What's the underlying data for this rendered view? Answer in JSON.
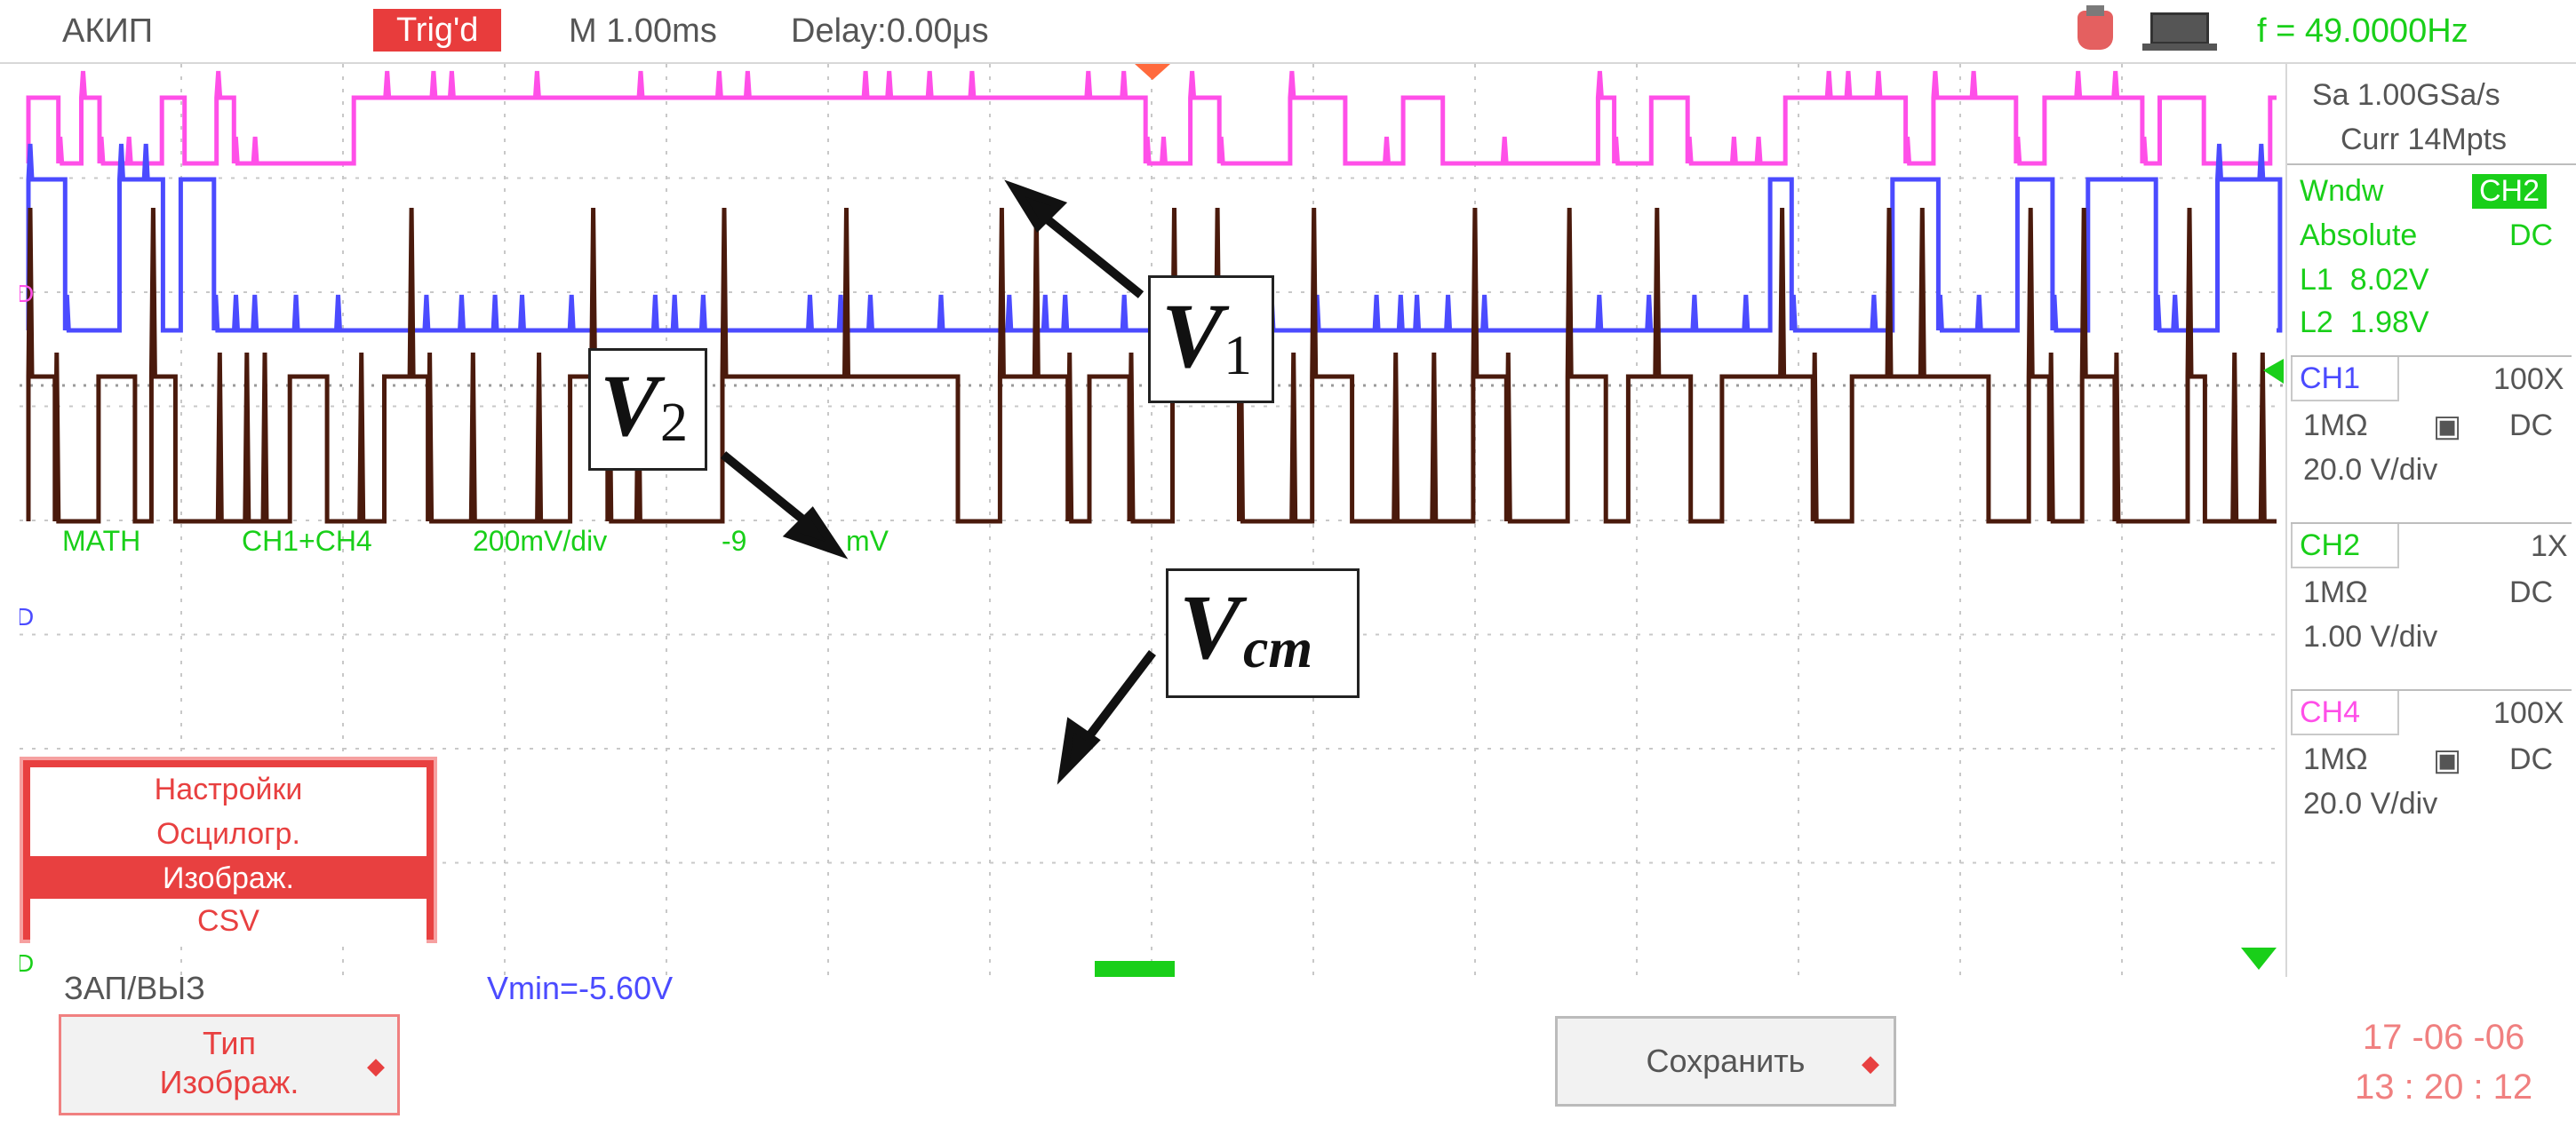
{
  "topbar": {
    "brand": "АКИП",
    "trigger_status": "Trig'd",
    "timebase": "M 1.00ms",
    "delay": "Delay:0.00μs",
    "frequency": "f = 49.0000Hz",
    "icons": [
      "usb-icon",
      "pc-icon"
    ]
  },
  "acquisition": {
    "sample_rate": "Sa 1.00GSa/s",
    "memory": "Curr 14Mpts"
  },
  "window_panel": {
    "mode": "Wndw",
    "channel_tag": "CH2",
    "reference": "Absolute",
    "coupling": "DC",
    "l1": "L1  8.02V",
    "l2": "L2  1.98V"
  },
  "channels": [
    {
      "name": "CH1",
      "probe": "100X",
      "impedance": "1MΩ",
      "coupling": "DC",
      "scale": "20.0 V/div",
      "color": "#4b4bff"
    },
    {
      "name": "CH2",
      "probe": "1X",
      "impedance": "1MΩ",
      "coupling": "DC",
      "scale": "1.00 V/div",
      "color": "#19cf19"
    },
    {
      "name": "CH4",
      "probe": "100X",
      "impedance": "1MΩ",
      "coupling": "DC",
      "scale": "20.0 V/div",
      "color": "#ff4fe8"
    }
  ],
  "math_label": {
    "name": "MATH",
    "expr": "CH1+CH4",
    "scale": "200mV/div",
    "offset": "-9",
    "unit": "mV"
  },
  "menu": {
    "items": [
      "Настройки",
      "Осцилогр.",
      "Изображ.",
      "CSV"
    ],
    "selected_index": 2
  },
  "footer": {
    "section": "ЗАП/ВЫЗ",
    "vmin": "Vmin=-5.60V",
    "type_button_line1": "Тип",
    "type_button_line2": "Изображ.",
    "save_button": "Сохранить",
    "date": "17 -06 -06",
    "time": "13 : 20 : 12"
  },
  "annotations": [
    {
      "label": "V",
      "sub": "1"
    },
    {
      "label": "V",
      "sub": "2"
    },
    {
      "label": "V",
      "sub": "cm"
    }
  ],
  "colors": {
    "v1_trace": "#ff4fe8",
    "v2_trace": "#4b4bff",
    "vcm_trace": "#4a1a0c",
    "accent": "#e84040",
    "green": "#19cf19"
  }
}
